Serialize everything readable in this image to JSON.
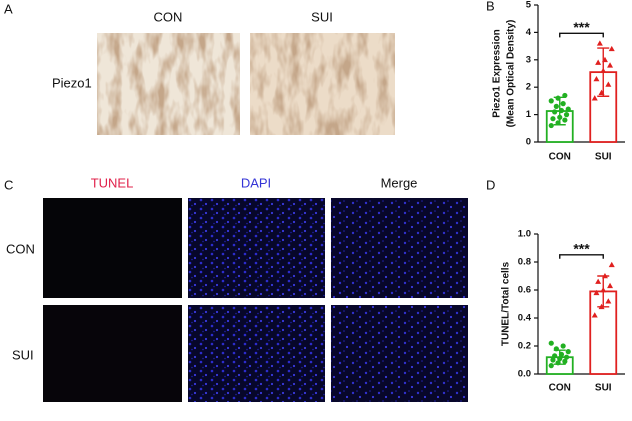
{
  "panels": {
    "A": {
      "label": "A",
      "columns": [
        "CON",
        "SUI"
      ],
      "row": "Piezo1"
    },
    "C": {
      "label": "C",
      "columns": [
        "TUNEL",
        "DAPI",
        "Merge"
      ],
      "column_colors": [
        "#e0204a",
        "#3434d6",
        "#111111"
      ],
      "rows": [
        "CON",
        "SUI"
      ]
    }
  },
  "chart_data": [
    {
      "type": "bar",
      "panel_label": "B",
      "ylabel": [
        "Piezo1 Expression",
        "(Mean Optical Density)"
      ],
      "categories": [
        "CON",
        "SUI"
      ],
      "values": [
        1.13,
        2.55
      ],
      "errors": [
        0.5,
        0.88
      ],
      "points": [
        [
          0.6,
          0.7,
          0.8,
          0.85,
          0.9,
          1.0,
          1.1,
          1.15,
          1.2,
          1.3,
          1.4,
          1.5,
          1.6,
          1.7
        ],
        [
          1.6,
          1.8,
          2.1,
          2.3,
          2.6,
          2.8,
          2.9,
          3.0,
          3.4,
          3.6
        ]
      ],
      "colors": [
        "#22b022",
        "#e0201f"
      ],
      "ylim": [
        0,
        5
      ],
      "yticks": [
        0,
        1,
        2,
        3,
        4,
        5
      ],
      "significance": "***"
    },
    {
      "type": "bar",
      "panel_label": "D",
      "ylabel": [
        "TUNEL/Total cells"
      ],
      "categories": [
        "CON",
        "SUI"
      ],
      "values": [
        0.12,
        0.59
      ],
      "errors": [
        0.05,
        0.11
      ],
      "points": [
        [
          0.06,
          0.08,
          0.09,
          0.1,
          0.11,
          0.12,
          0.13,
          0.14,
          0.16,
          0.18,
          0.2,
          0.22
        ],
        [
          0.42,
          0.48,
          0.52,
          0.58,
          0.6,
          0.63,
          0.66,
          0.7,
          0.78
        ]
      ],
      "colors": [
        "#22b022",
        "#e0201f"
      ],
      "ylim": [
        0,
        1.0
      ],
      "yticks": [
        {
          "value": 0,
          "label": "0.0"
        },
        0.2,
        0.4,
        0.6,
        0.8,
        {
          "value": 1.0,
          "label": "1.0"
        }
      ],
      "significance": "***"
    }
  ]
}
